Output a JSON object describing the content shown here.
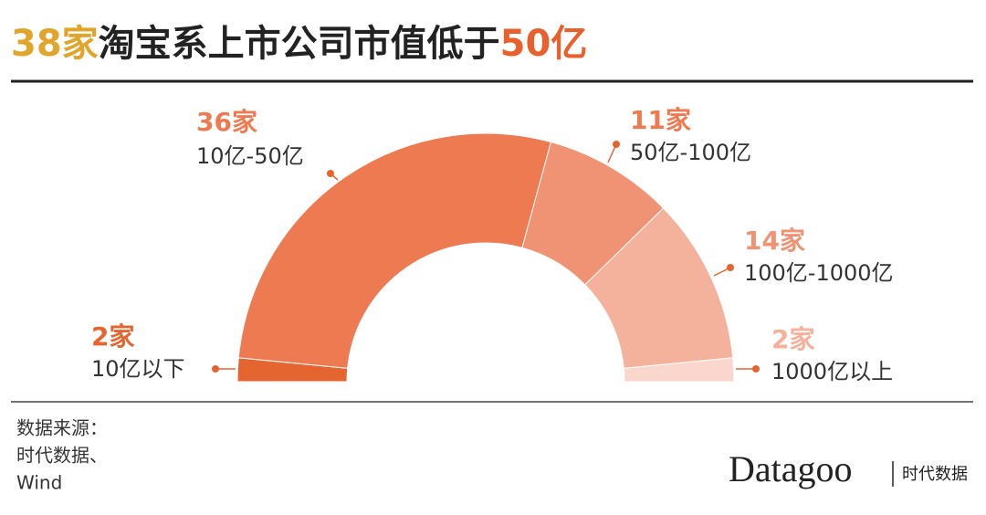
{
  "chart_data": {
    "type": "semi-donut",
    "title_parts": [
      "38家",
      "淘宝系上市公司市值低于",
      "50亿"
    ],
    "categories": [
      "10亿以下",
      "10亿-50亿",
      "50亿-100亿",
      "100亿-1000亿",
      "1000亿以上"
    ],
    "values": [
      2,
      36,
      11,
      14,
      2
    ],
    "value_labels": [
      "2家",
      "36家",
      "11家",
      "14家",
      "2家"
    ],
    "colors": [
      "#e4652f",
      "#ee7a52",
      "#f09274",
      "#f4b19c",
      "#fbd6cc"
    ],
    "source": [
      "数据来源：",
      "时代数据、",
      "Wind"
    ],
    "brand": "Datagoo",
    "brand_sub": "时代数据"
  }
}
